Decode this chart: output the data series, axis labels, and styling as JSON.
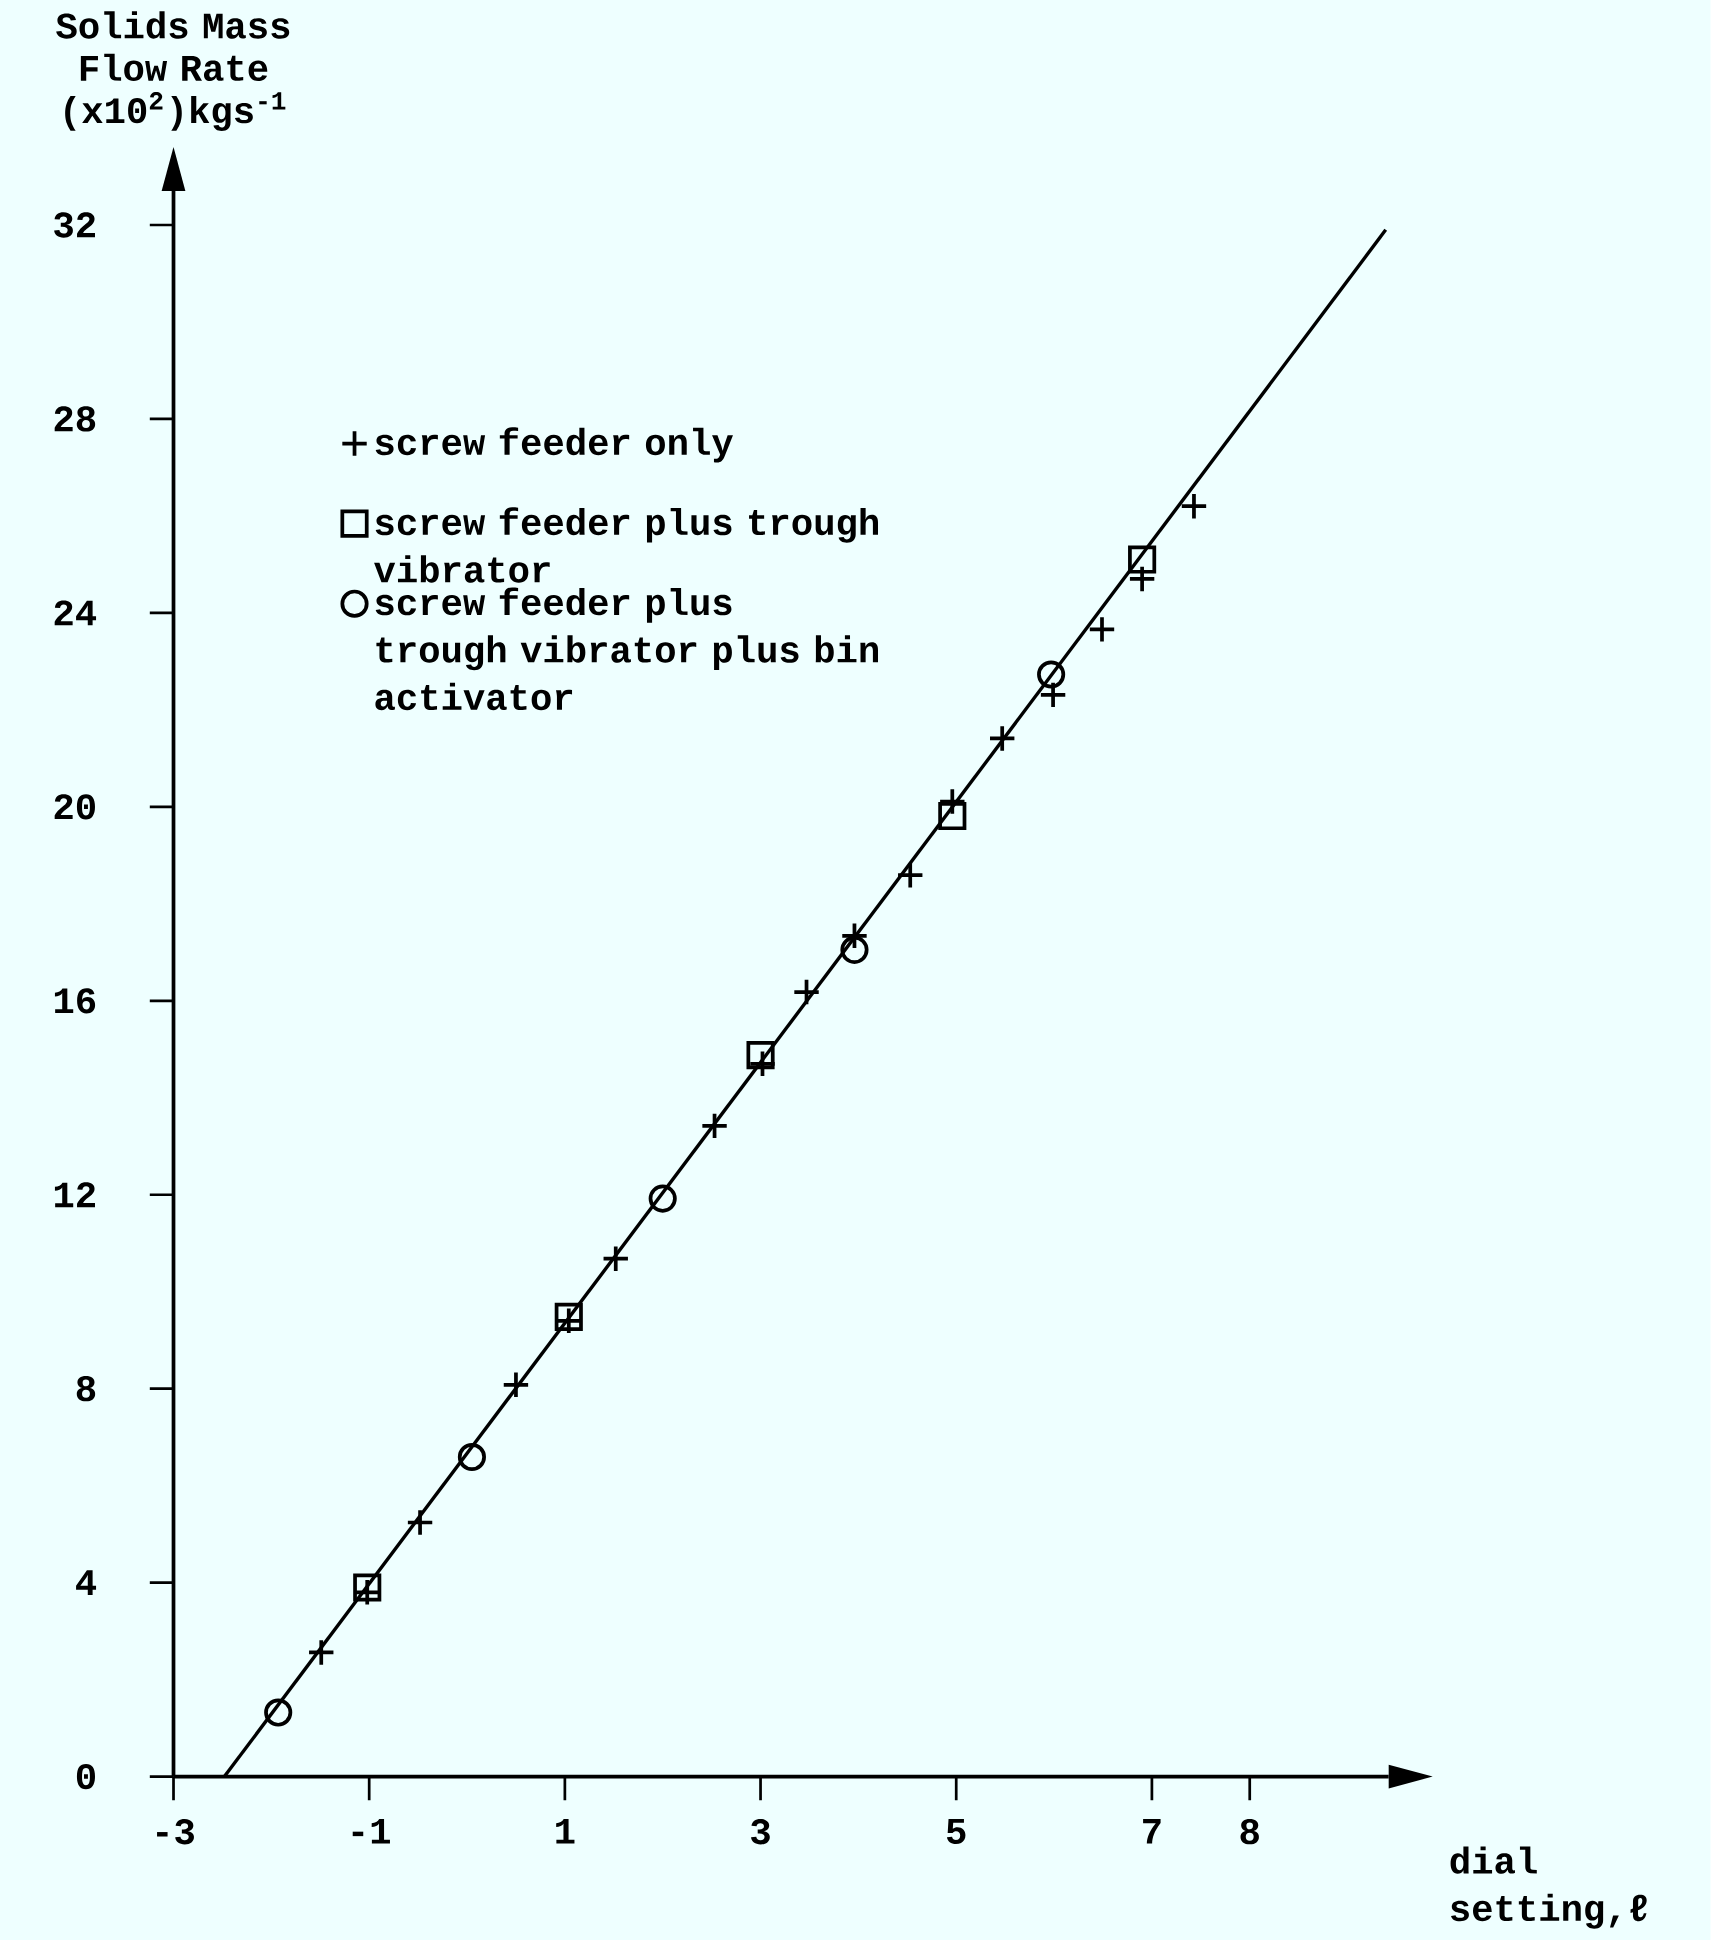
{
  "chart_data": {
    "type": "scatter",
    "ylabel": "Solids Mass Flow Rate (x10$^{2}$)kgs$^{-1}$",
    "xlabel": "dial setting,ℓ",
    "xlim": [
      -3,
      9.42
    ],
    "ylim": [
      0,
      32.7
    ],
    "xticks": [
      -3,
      -1,
      1,
      3,
      5,
      7,
      8
    ],
    "yticks": [
      0,
      4,
      8,
      12,
      16,
      20,
      24,
      28,
      32
    ],
    "legend": "top left",
    "series": [
      {
        "name": "screw feeder only",
        "type": "scatter",
        "marker": "cross",
        "color": "#000000",
        "x": [
          -1.49,
          -1.02,
          -0.48,
          0.5,
          1.04,
          1.52,
          2.53,
          3.02,
          3.47,
          3.96,
          4.53,
          4.96,
          5.47,
          5.99,
          6.49,
          6.9,
          7.43
        ],
        "values": [
          2.56,
          3.8,
          5.24,
          8.08,
          9.4,
          10.68,
          13.42,
          14.7,
          16.18,
          17.34,
          18.59,
          20.11,
          21.41,
          22.31,
          23.66,
          24.7,
          26.2
        ]
      },
      {
        "name": "screw feeder plus trough vibrator",
        "type": "scatter",
        "marker": "square",
        "color": "#000000",
        "x": [
          -1.02,
          1.04,
          3.0,
          4.96,
          6.9
        ],
        "values": [
          3.9,
          9.48,
          14.88,
          19.81,
          25.1
        ]
      },
      {
        "name": "screw feeder plus trough vibrator plus bin activator",
        "type": "scatter",
        "marker": "circle",
        "color": "#000000",
        "x": [
          -1.93,
          0.05,
          2.0,
          3.96,
          5.97
        ],
        "values": [
          1.32,
          6.59,
          11.92,
          17.05,
          22.73
        ]
      },
      {
        "type": "line",
        "marker": "none",
        "color": "#000000",
        "x": [
          -2.48,
          9.39
        ],
        "values": [
          0,
          31.9
        ]
      }
    ]
  }
}
